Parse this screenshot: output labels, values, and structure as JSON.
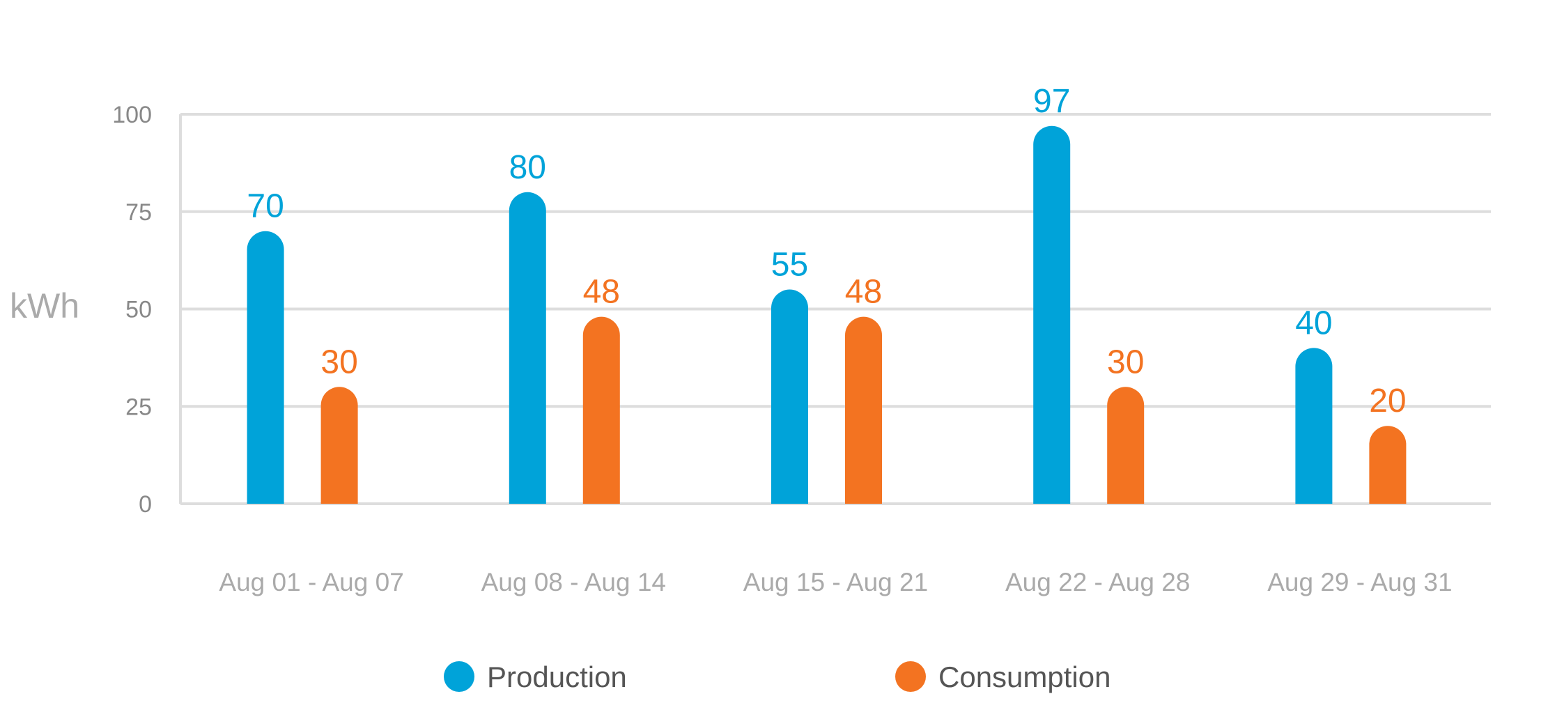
{
  "chart_data": {
    "type": "bar",
    "title": "",
    "xlabel": "",
    "ylabel": "kWh",
    "ylim": [
      0,
      100
    ],
    "yticks": [
      0,
      25,
      50,
      75,
      100
    ],
    "grid": true,
    "legend_position": "bottom",
    "categories": [
      "Aug 01 - Aug 07",
      "Aug 08 - Aug 14",
      "Aug 15 - Aug 21",
      "Aug 22 - Aug 28",
      "Aug 29 - Aug 31"
    ],
    "series": [
      {
        "name": "Production",
        "color": "#00A3D9",
        "values": [
          70,
          80,
          55,
          97,
          40
        ]
      },
      {
        "name": "Consumption",
        "color": "#F37321",
        "values": [
          30,
          48,
          48,
          30,
          20
        ]
      }
    ]
  }
}
